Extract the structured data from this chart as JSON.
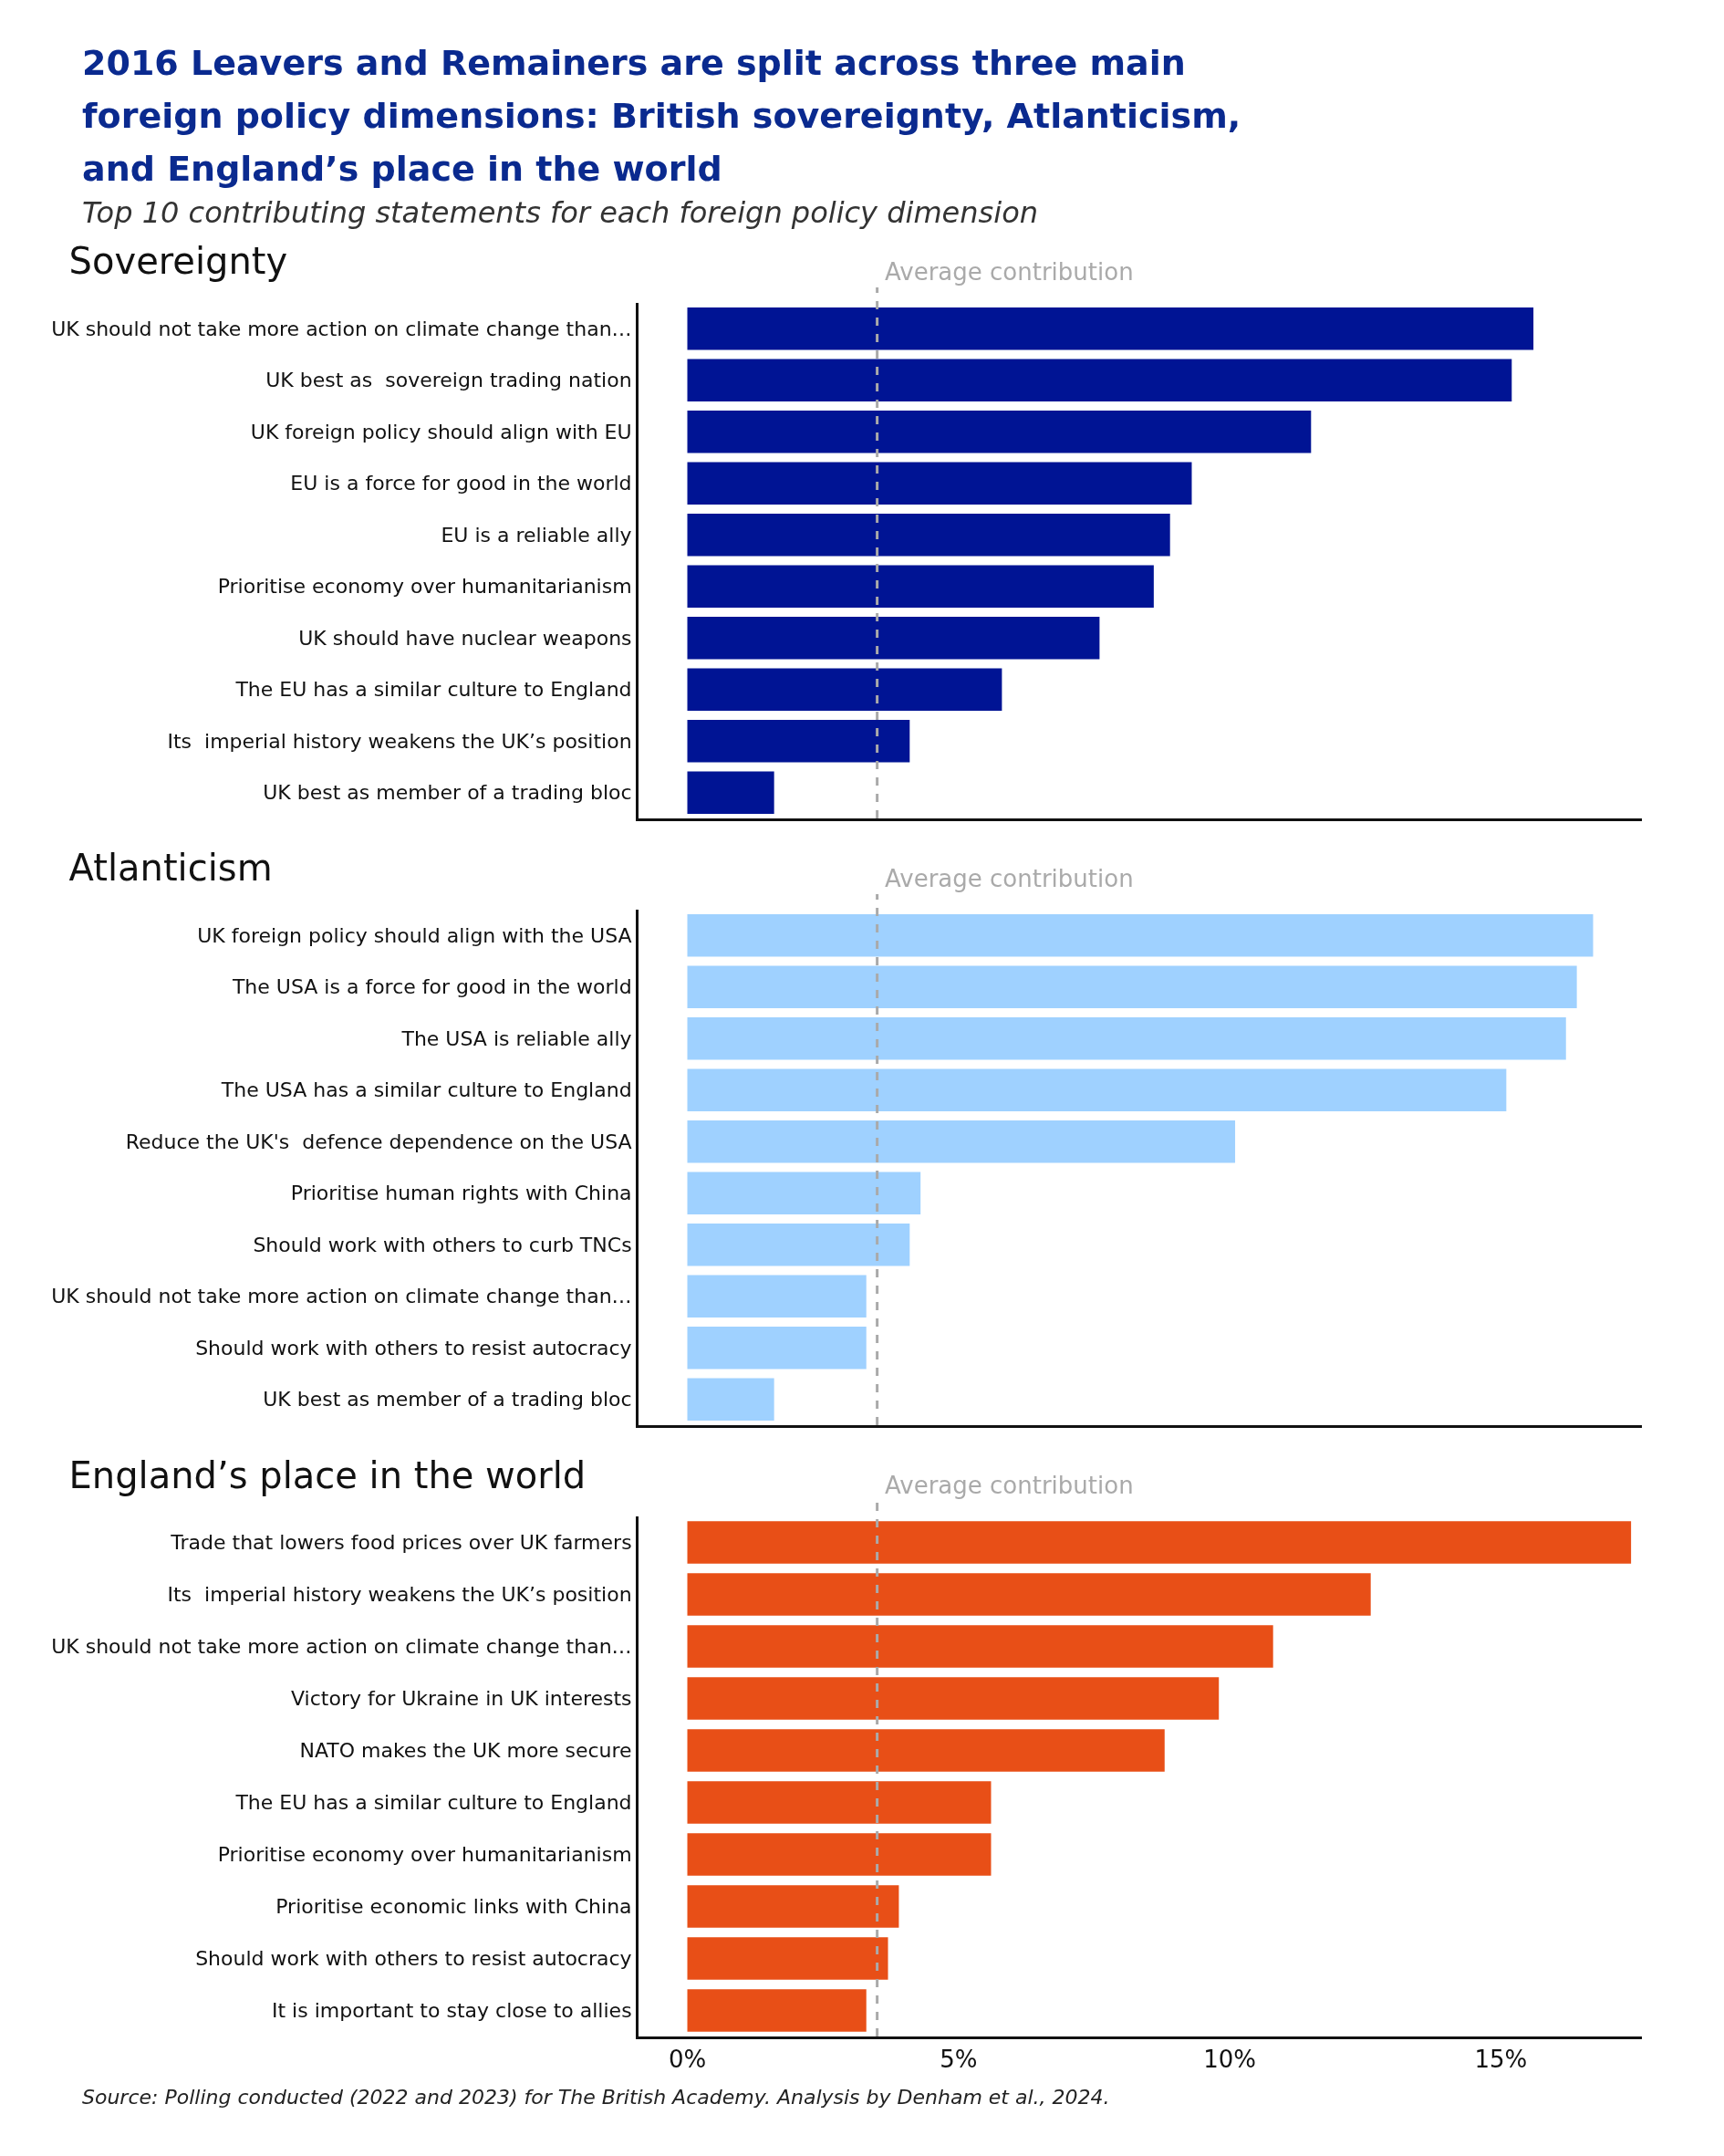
{
  "chart_data": [
    {
      "type": "other",
      "title": "2016 Leavers and Remainers are split across three main foreign policy dimensions: British sovereignty, Atlanticism, and England’s place in the world",
      "subtitle": "Top 10 contributing statements for each foreign policy dimension"
    },
    {
      "type": "bar",
      "orientation": "horizontal",
      "title": "Sovereignty",
      "color": "#001494",
      "tick_labels": "y",
      "categories": [
        "UK should not take more action on climate change than…",
        "UK best as  sovereign trading nation",
        "UK foreign policy should align with EU",
        "EU is a force for good in the world",
        "EU is a reliable ally",
        "Prioritise economy over humanitarianism",
        "UK should have nuclear weapons",
        "The EU has a similar culture to England",
        "Its  imperial history weakens the UK’s position",
        "UK best as member of a trading bloc"
      ],
      "values": [
        15.6,
        15.2,
        11.5,
        9.3,
        8.9,
        8.6,
        7.6,
        5.8,
        4.1,
        1.6
      ],
      "xlim": [
        -0.9,
        17.6
      ],
      "ref_lines": [
        {
          "axis": "x",
          "value": 3.5,
          "label": "Average contribution",
          "color": "#aaaaaa",
          "line_style": "dashed"
        }
      ]
    },
    {
      "type": "bar",
      "orientation": "horizontal",
      "title": "Atlanticism",
      "color": "#9fd1ff",
      "tick_labels": "y",
      "categories": [
        "UK foreign policy should align with the USA",
        "The USA is a force for good in the world",
        "The USA is reliable ally",
        "The USA has a similar culture to England",
        "Reduce the UK's  defence dependence on the USA",
        "Prioritise human rights with China",
        "Should work with others to curb TNCs",
        "UK should not take more action on climate change than…",
        "Should work with others to resist autocracy",
        "UK best as member of a trading bloc"
      ],
      "values": [
        16.7,
        16.4,
        16.2,
        15.1,
        10.1,
        4.3,
        4.1,
        3.3,
        3.3,
        1.6
      ],
      "xlim": [
        -0.9,
        17.6
      ],
      "ref_lines": [
        {
          "axis": "x",
          "value": 3.5,
          "label": "Average contribution",
          "color": "#aaaaaa",
          "line_style": "dashed"
        }
      ]
    },
    {
      "type": "bar",
      "orientation": "horizontal",
      "title": "England’s place in the world",
      "color": "#e84f17",
      "categories": [
        "Trade that lowers food prices over UK farmers",
        "Its  imperial history weakens the UK’s position",
        "UK should not take more action on climate change than…",
        "Victory for Ukraine in UK interests",
        "NATO makes the UK more secure",
        "The EU has a similar culture to England",
        "Prioritise economy over humanitarianism",
        "Prioritise economic links with China",
        "Should work with others to resist autocracy",
        "It is important to stay close to allies"
      ],
      "values": [
        17.4,
        12.6,
        10.8,
        9.8,
        8.8,
        5.6,
        5.6,
        3.9,
        3.7,
        3.3
      ],
      "xlim": [
        -0.9,
        17.6
      ],
      "xticks": [
        {
          "value": 0,
          "label": "0%"
        },
        {
          "value": 5,
          "label": "5%"
        },
        {
          "value": 10,
          "label": "10%"
        },
        {
          "value": 15,
          "label": "15%"
        }
      ],
      "ref_lines": [
        {
          "axis": "x",
          "value": 3.5,
          "label": "Average contribution",
          "color": "#aaaaaa",
          "line_style": "dashed"
        }
      ],
      "annotations": [
        "Source: Polling conducted (2022 and 2023) for The  British Academy. Analysis by Denham et al., 2024."
      ]
    }
  ]
}
